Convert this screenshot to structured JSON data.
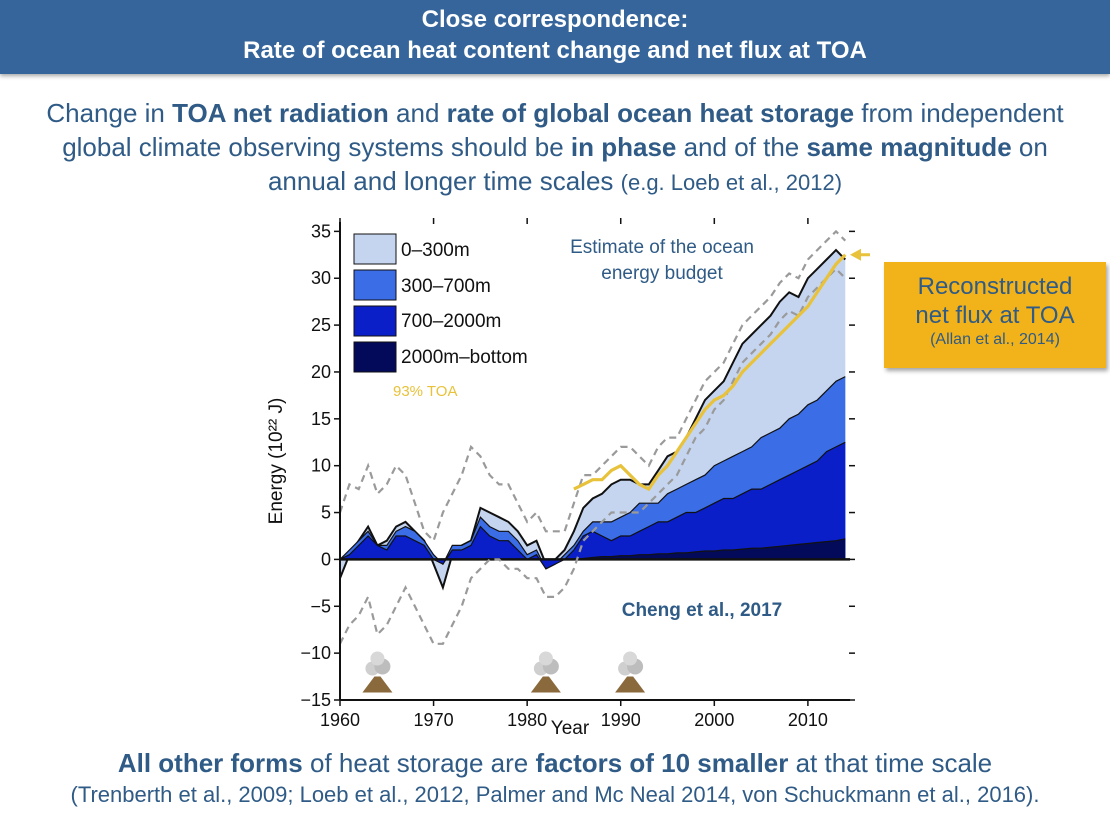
{
  "banner": {
    "line1": "Close correspondence:",
    "line2": "Rate of ocean heat content change and net flux at TOA"
  },
  "intro": {
    "p1": "Change in ",
    "b1": "TOA net radiation",
    "p2": " and ",
    "b2": "rate of global ocean heat storage",
    "p3": " from independent global climate observing systems should be ",
    "b3": "in phase",
    "p4": " and of the ",
    "b4": "same magnitude",
    "p5": " on annual and longer time scales ",
    "cite": "(e.g. Loeb et al., 2012)"
  },
  "callout": {
    "line1": "Reconstructed",
    "line2": "net flux at TOA",
    "line3": "(Allan et al., 2014)"
  },
  "footer": {
    "b1": "All other forms",
    "p1": " of heat storage are ",
    "b2": "factors of 10 smaller",
    "p2": " at that time scale",
    "refs": "(Trenberth et al., 2009; Loeb et al., 2012, Palmer and Mc Neal 2014, von Schuckmann et al., 2016)."
  },
  "colors": {
    "layer_0_300": "#c5d5f0",
    "layer_300_700": "#3a6de6",
    "layer_700_2000": "#0a1fc8",
    "layer_2000_bottom": "#030a5a",
    "toa": "#e8c23a",
    "banner": "#35659a",
    "callout": "#f2b21a"
  },
  "chart_data": {
    "type": "area",
    "title": "Estimate of the ocean energy budget",
    "xlabel": "Year",
    "ylabel": "Energy (10²² J)",
    "xlim": [
      1960,
      2014.5
    ],
    "ylim": [
      -15,
      36
    ],
    "x_ticks": [
      1960,
      1970,
      1980,
      1990,
      2000,
      2010
    ],
    "y_ticks": [
      -15,
      -10,
      -5,
      0,
      5,
      10,
      15,
      20,
      25,
      30,
      35
    ],
    "x_tick_labels": [
      "1960",
      "1970",
      "1980",
      "1990",
      "2000",
      "2010"
    ],
    "y_tick_labels": [
      "−15",
      "−10",
      "−5",
      "0",
      "5",
      "10",
      "15",
      "20",
      "25",
      "30",
      "35"
    ],
    "annotation": "Cheng et al., 2017",
    "legend_position": "top-left",
    "volcano_eruption_years": [
      1964,
      1982,
      1991
    ],
    "x": [
      1960,
      1961,
      1962,
      1963,
      1964,
      1965,
      1966,
      1967,
      1968,
      1969,
      1970,
      1971,
      1972,
      1973,
      1974,
      1975,
      1976,
      1977,
      1978,
      1979,
      1980,
      1981,
      1982,
      1983,
      1984,
      1985,
      1986,
      1987,
      1988,
      1989,
      1990,
      1991,
      1992,
      1993,
      1994,
      1995,
      1996,
      1997,
      1998,
      1999,
      2000,
      2001,
      2002,
      2003,
      2004,
      2005,
      2006,
      2007,
      2008,
      2009,
      2010,
      2011,
      2012,
      2013,
      2014
    ],
    "series": [
      {
        "name": "2000m–bottom",
        "values": [
          0,
          0,
          0,
          0,
          0,
          0,
          0,
          0,
          0,
          0,
          0,
          0,
          0,
          0,
          0,
          0,
          0,
          0,
          0,
          0,
          0,
          0,
          0,
          0,
          0,
          0,
          0.1,
          0.2,
          0.3,
          0.3,
          0.4,
          0.4,
          0.5,
          0.5,
          0.6,
          0.6,
          0.7,
          0.7,
          0.8,
          0.9,
          0.9,
          1.0,
          1.0,
          1.1,
          1.2,
          1.2,
          1.3,
          1.4,
          1.5,
          1.6,
          1.7,
          1.8,
          1.9,
          2.0,
          2.2
        ]
      },
      {
        "name": "700–2000m",
        "values": [
          0,
          0.5,
          1.5,
          2.5,
          1.5,
          1,
          2.5,
          2.5,
          2,
          1.5,
          0,
          -0.5,
          1,
          1,
          1.5,
          3.5,
          2.5,
          2,
          2,
          1,
          0,
          0.5,
          -1,
          -0.5,
          0,
          1,
          2.5,
          3,
          2.5,
          2,
          2.5,
          2.5,
          3,
          3.5,
          4,
          4,
          4.5,
          5,
          5,
          5.5,
          6,
          6.5,
          6.5,
          7,
          7.5,
          7.5,
          8,
          8.5,
          9,
          9.5,
          10,
          10.5,
          11.5,
          12,
          12.5
        ]
      },
      {
        "name": "300–700m",
        "values": [
          0,
          1,
          2,
          3,
          1.5,
          1.5,
          3,
          3.5,
          3,
          2,
          0.5,
          -0.5,
          1.5,
          1.5,
          2,
          4.5,
          3.5,
          3,
          3,
          2,
          0.5,
          1,
          -1,
          -0.5,
          0.5,
          1.5,
          3,
          4,
          4,
          4,
          4.5,
          5,
          6,
          6,
          6,
          7,
          7.5,
          8,
          8.5,
          9,
          10,
          10.5,
          11,
          11.5,
          12,
          13,
          13.5,
          14,
          15,
          15.5,
          16.5,
          17,
          18,
          19,
          19.5
        ]
      },
      {
        "name": "0–300m",
        "values": [
          -2,
          0.5,
          2,
          3.5,
          1.5,
          2,
          3.5,
          4,
          3,
          2,
          -0.5,
          -3,
          0.5,
          1.5,
          2,
          5.5,
          5,
          4.5,
          4,
          3,
          1.5,
          2,
          -0.5,
          0,
          1,
          3,
          5.5,
          6.5,
          7,
          8,
          8.5,
          8.5,
          8,
          8,
          9.5,
          11,
          11.5,
          13,
          15,
          17,
          18,
          19,
          21,
          23,
          24,
          25,
          26,
          27.5,
          28.5,
          28,
          30,
          31,
          32,
          33,
          32
        ]
      }
    ],
    "toa_series": {
      "name": "93% TOA",
      "x": [
        1985,
        1986,
        1987,
        1988,
        1989,
        1990,
        1991,
        1992,
        1993,
        1994,
        1995,
        1996,
        1997,
        1998,
        1999,
        2000,
        2001,
        2002,
        2003,
        2004,
        2005,
        2006,
        2007,
        2008,
        2009,
        2010,
        2011,
        2012,
        2013,
        2014
      ],
      "values": [
        7.5,
        8,
        8.5,
        8.5,
        9.5,
        10,
        9,
        8,
        7.5,
        9,
        10,
        11.5,
        13,
        14.5,
        16,
        17,
        17.5,
        18.5,
        20,
        21,
        22,
        23,
        24,
        25,
        26,
        27,
        28.5,
        30,
        31.5,
        32.5
      ]
    },
    "uncertainty_band": {
      "x": [
        1960,
        1961,
        1962,
        1963,
        1964,
        1965,
        1966,
        1967,
        1968,
        1969,
        1970,
        1971,
        1972,
        1973,
        1974,
        1975,
        1976,
        1977,
        1978,
        1979,
        1980,
        1981,
        1982,
        1983,
        1984,
        1985,
        1986,
        1987,
        1988,
        1989,
        1990,
        1991,
        1992,
        1993,
        1994,
        1995,
        1996,
        1997,
        1998,
        1999,
        2000,
        2001,
        2002,
        2003,
        2004,
        2005,
        2006,
        2007,
        2008,
        2009,
        2010,
        2011,
        2012,
        2013,
        2014
      ],
      "upper": [
        5,
        8,
        7.5,
        10,
        7,
        8,
        10,
        9,
        6,
        3,
        2,
        5,
        7,
        9,
        12,
        11,
        9,
        8,
        8,
        6,
        4,
        5,
        3,
        3,
        3,
        6,
        9,
        9,
        10,
        11,
        12,
        12,
        11,
        10,
        12,
        13,
        13,
        15,
        17,
        19,
        20,
        21,
        23,
        25,
        26,
        27,
        28,
        29.5,
        30.5,
        30,
        32,
        33,
        34,
        35,
        34
      ],
      "lower": [
        -9,
        -7,
        -6,
        -4,
        -8,
        -7,
        -5,
        -3,
        -5,
        -7,
        -9,
        -9,
        -7,
        -5,
        -2,
        -1,
        0,
        0,
        -1,
        -1,
        -2,
        -2,
        -4,
        -4,
        -3,
        -1,
        2,
        3,
        4,
        5,
        5,
        5,
        5,
        6,
        7,
        8,
        9,
        11,
        13,
        14,
        16,
        17,
        19,
        21,
        22,
        23,
        24,
        25.5,
        26.5,
        26,
        28,
        29,
        30,
        31,
        30
      ]
    }
  }
}
